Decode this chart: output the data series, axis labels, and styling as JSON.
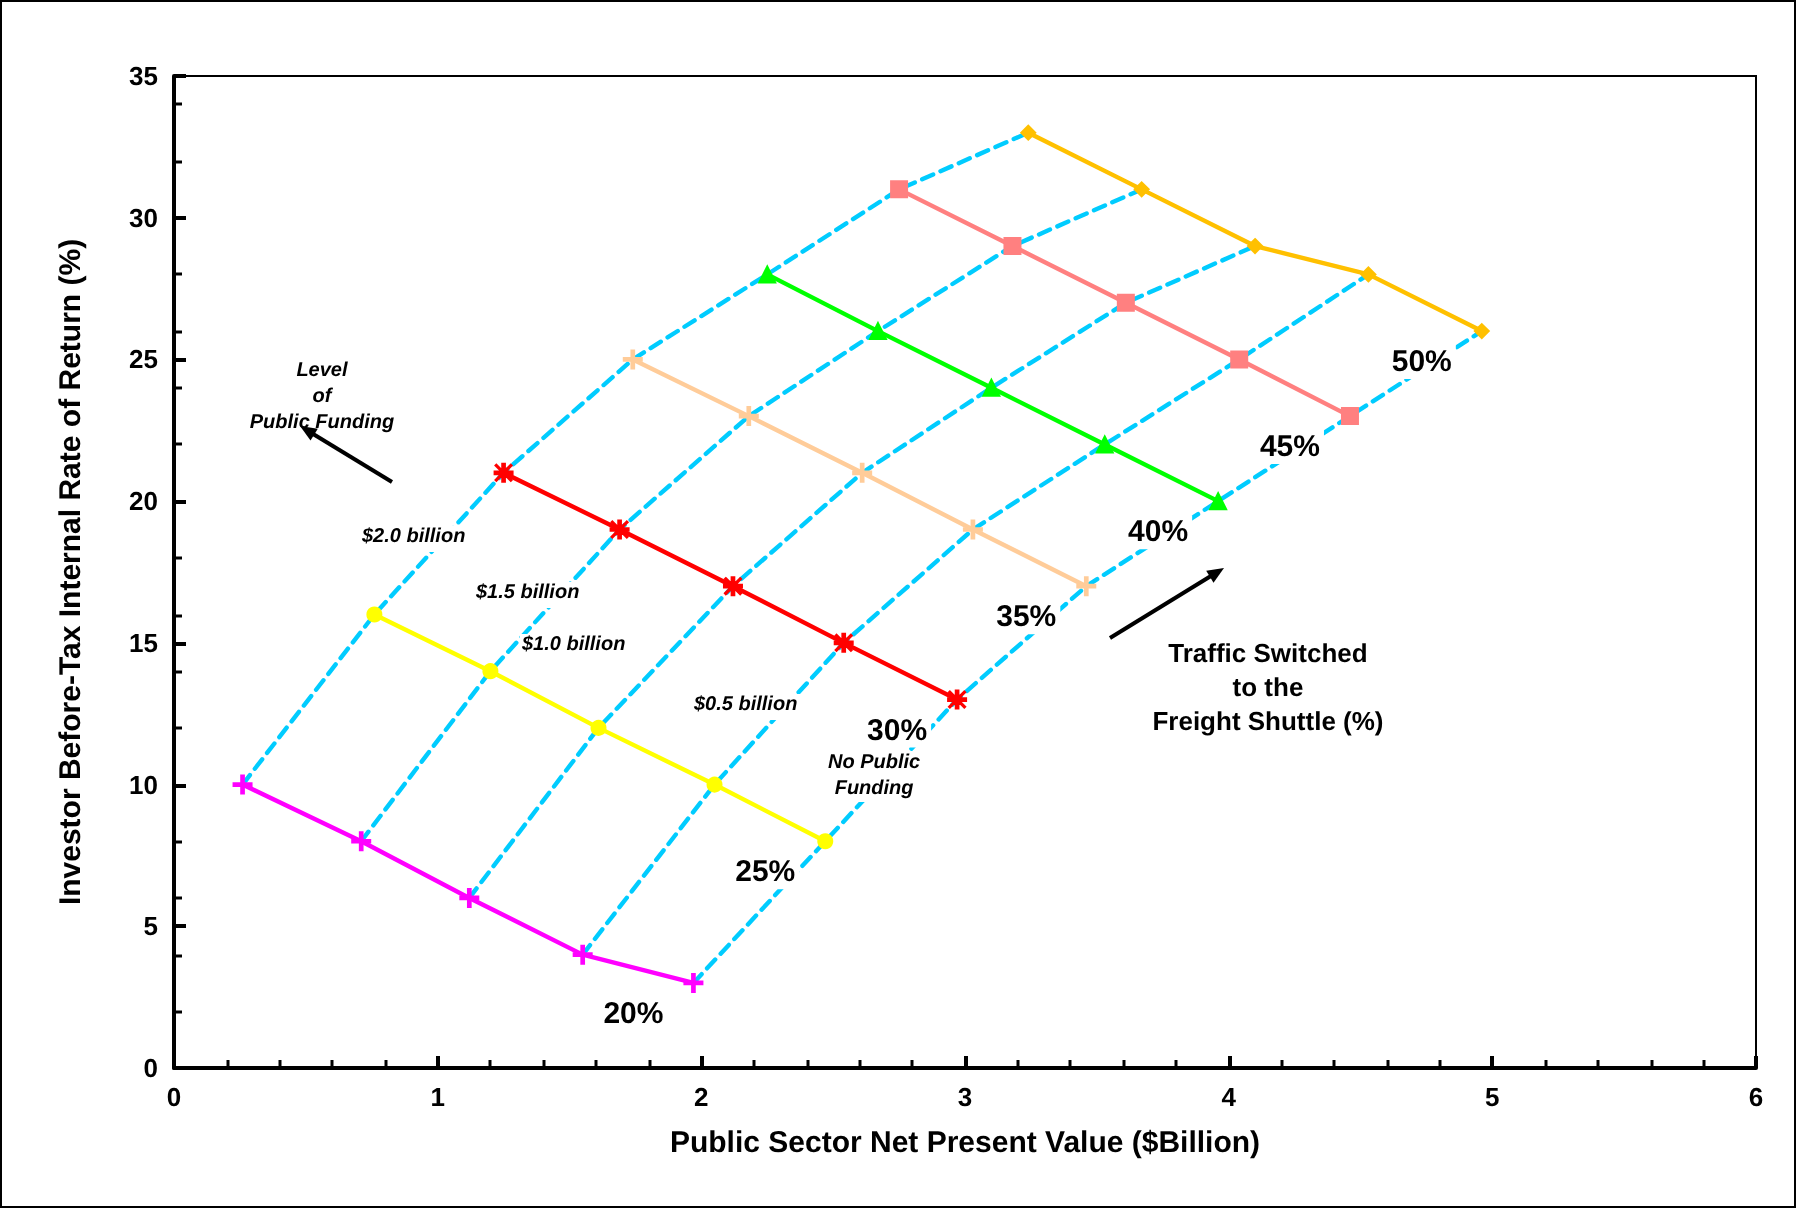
{
  "chart_data": {
    "type": "line",
    "xlabel": "Public Sector Net Present Value ($Billion)",
    "ylabel": "Investor Before-Tax Internal Rate of Return (%)",
    "xlim": [
      0,
      6
    ],
    "xticks": [
      0,
      1,
      2,
      3,
      4,
      5,
      6
    ],
    "ylim": [
      0,
      35
    ],
    "yticks": [
      0,
      5,
      10,
      15,
      20,
      25,
      30,
      35
    ],
    "grid": false,
    "legend": false,
    "series": [
      {
        "name": "20%",
        "color": "#ff00ff",
        "marker": "cross",
        "line_style": "solid",
        "x": [
          0.26,
          0.71,
          1.12,
          1.55,
          1.97
        ],
        "values": [
          10,
          8,
          6,
          4,
          3
        ]
      },
      {
        "name": "25%",
        "color": "#ffff00",
        "marker": "circle",
        "line_style": "solid",
        "x": [
          0.76,
          1.2,
          1.61,
          2.05,
          2.47
        ],
        "values": [
          16,
          14,
          12,
          10,
          8
        ]
      },
      {
        "name": "30%",
        "color": "#ff0000",
        "marker": "star",
        "line_style": "solid",
        "x": [
          1.25,
          1.69,
          2.12,
          2.54,
          2.97
        ],
        "values": [
          21,
          19,
          17,
          15,
          13
        ]
      },
      {
        "name": "35%",
        "color": "#ffcc99",
        "marker": "cross",
        "line_style": "solid",
        "x": [
          1.74,
          2.18,
          2.61,
          3.03,
          3.46
        ],
        "values": [
          25,
          23,
          21,
          19,
          17
        ]
      },
      {
        "name": "40%",
        "color": "#00ff00",
        "marker": "triangle",
        "line_style": "solid",
        "x": [
          2.25,
          2.67,
          3.1,
          3.53,
          3.96
        ],
        "values": [
          28,
          26,
          24,
          22,
          20
        ]
      },
      {
        "name": "45%",
        "color": "#ff8080",
        "marker": "square",
        "line_style": "solid",
        "x": [
          2.75,
          3.18,
          3.61,
          4.04,
          4.46
        ],
        "values": [
          31,
          29,
          27,
          25,
          23
        ]
      },
      {
        "name": "50%",
        "color": "#ffc000",
        "marker": "diamond",
        "line_style": "solid",
        "x": [
          3.24,
          3.67,
          4.1,
          4.53,
          4.96
        ],
        "values": [
          33,
          31,
          29,
          28,
          26
        ]
      },
      {
        "color": "#00ccff",
        "marker": "none",
        "line_style": "dashed",
        "x": [
          0.26,
          0.76,
          1.25,
          1.74,
          2.25,
          2.75,
          3.24
        ],
        "values": [
          10,
          16,
          21,
          25,
          28,
          31,
          33
        ]
      },
      {
        "color": "#00ccff",
        "marker": "none",
        "line_style": "dashed",
        "x": [
          0.71,
          1.2,
          1.69,
          2.18,
          2.67,
          3.18,
          3.67
        ],
        "values": [
          8,
          14,
          19,
          23,
          26,
          29,
          31
        ]
      },
      {
        "color": "#00ccff",
        "marker": "none",
        "line_style": "dashed",
        "x": [
          1.12,
          1.61,
          2.12,
          2.61,
          3.1,
          3.61,
          4.1
        ],
        "values": [
          6,
          12,
          17,
          21,
          24,
          27,
          29
        ]
      },
      {
        "color": "#00ccff",
        "marker": "none",
        "line_style": "dashed",
        "x": [
          1.55,
          2.05,
          2.54,
          3.03,
          3.53,
          4.04,
          4.53
        ],
        "values": [
          4,
          10,
          15,
          19,
          22,
          25,
          28
        ]
      },
      {
        "color": "#00ccff",
        "marker": "none",
        "line_style": "dashed",
        "x": [
          1.97,
          2.47,
          2.97,
          3.46,
          3.96,
          4.46,
          4.96
        ],
        "values": [
          3,
          8,
          13,
          17,
          20,
          23,
          26
        ]
      }
    ],
    "annotations": [
      "$2.0 billion",
      "$1.5 billion",
      "$1.0 billion",
      "$0.5 billion",
      "No Public\nFunding",
      "Level\nof\nPublic Funding",
      "Traffic Switched\nto the\nFreight Shuttle (%)"
    ]
  }
}
